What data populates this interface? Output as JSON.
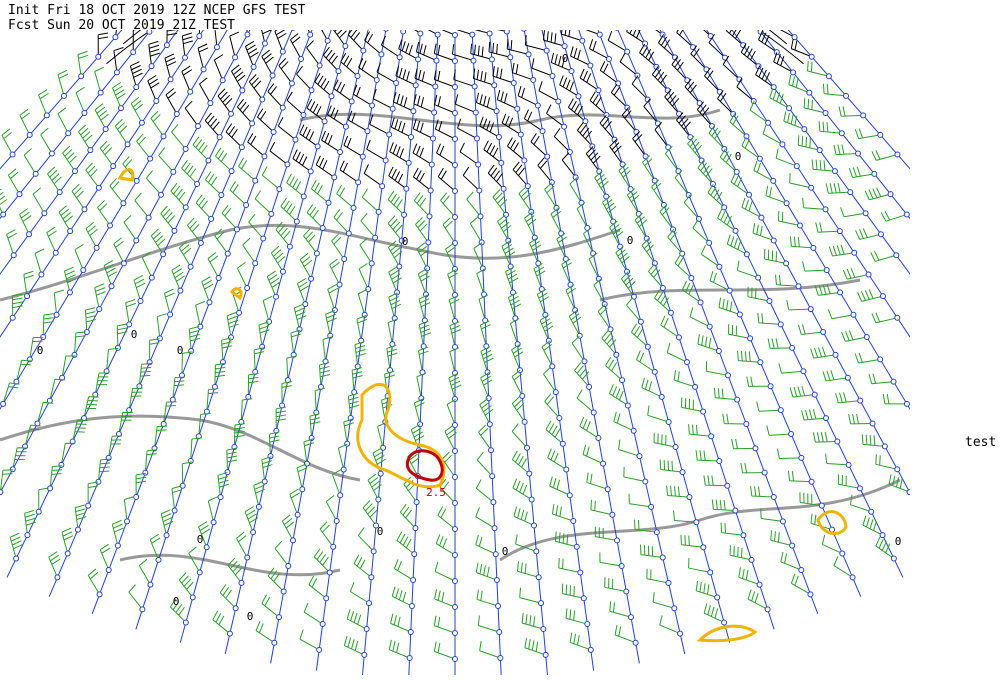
{
  "header": {
    "line1": "Init  Fri 18 OCT 2019 12Z   NCEP GFS TEST",
    "line2": "Fcst Sun 20 OCT 2019 21Z  TEST"
  },
  "side_label": "test",
  "contour_labels": [
    "0",
    "0",
    "0",
    "0",
    "0",
    "0",
    "0",
    "0",
    "0",
    "0",
    "0",
    "0",
    "0",
    "2.5"
  ]
}
